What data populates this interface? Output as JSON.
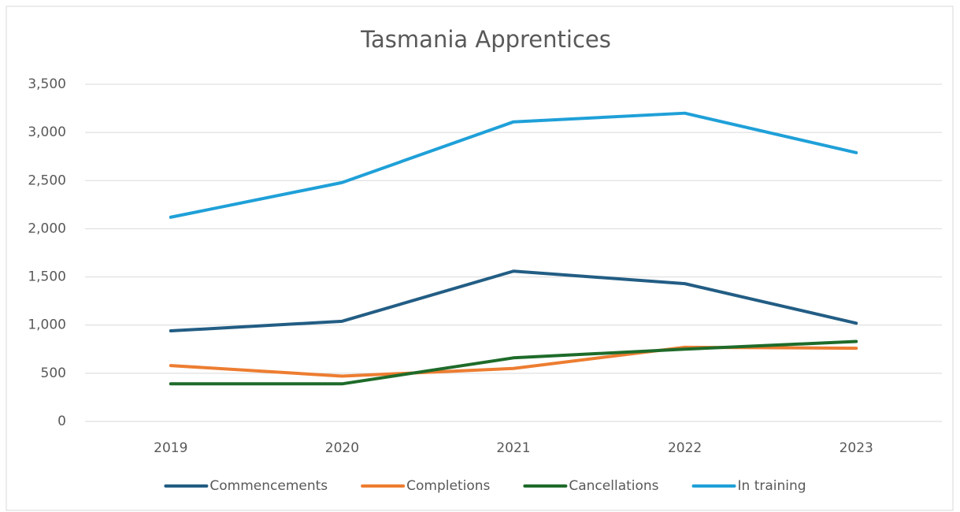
{
  "chart_data": {
    "type": "line",
    "title": "Tasmania Apprentices",
    "categories": [
      "2019",
      "2020",
      "2021",
      "2022",
      "2023"
    ],
    "series": [
      {
        "name": "Commencements",
        "color": "#225d84",
        "values": [
          940,
          1040,
          1560,
          1430,
          1020
        ]
      },
      {
        "name": "Completions",
        "color": "#ed7d31",
        "values": [
          580,
          470,
          550,
          770,
          760
        ]
      },
      {
        "name": "Cancellations",
        "color": "#1e6b2a",
        "values": [
          390,
          390,
          660,
          750,
          830
        ]
      },
      {
        "name": "In training",
        "color": "#1fa0d8",
        "values": [
          2120,
          2480,
          3110,
          3200,
          2790
        ]
      }
    ],
    "ylim": [
      0,
      3500
    ],
    "yticks": [
      0,
      500,
      {
        "value": 1000,
        "label": "1,000"
      },
      {
        "value": 1500,
        "label": "1,500"
      },
      {
        "value": 2000,
        "label": "2,000"
      },
      {
        "value": 2500,
        "label": "2,500"
      },
      {
        "value": 3000,
        "label": "3,000"
      },
      {
        "value": 3500,
        "label": "3,500"
      }
    ],
    "grid": true,
    "legend": "bottom"
  }
}
